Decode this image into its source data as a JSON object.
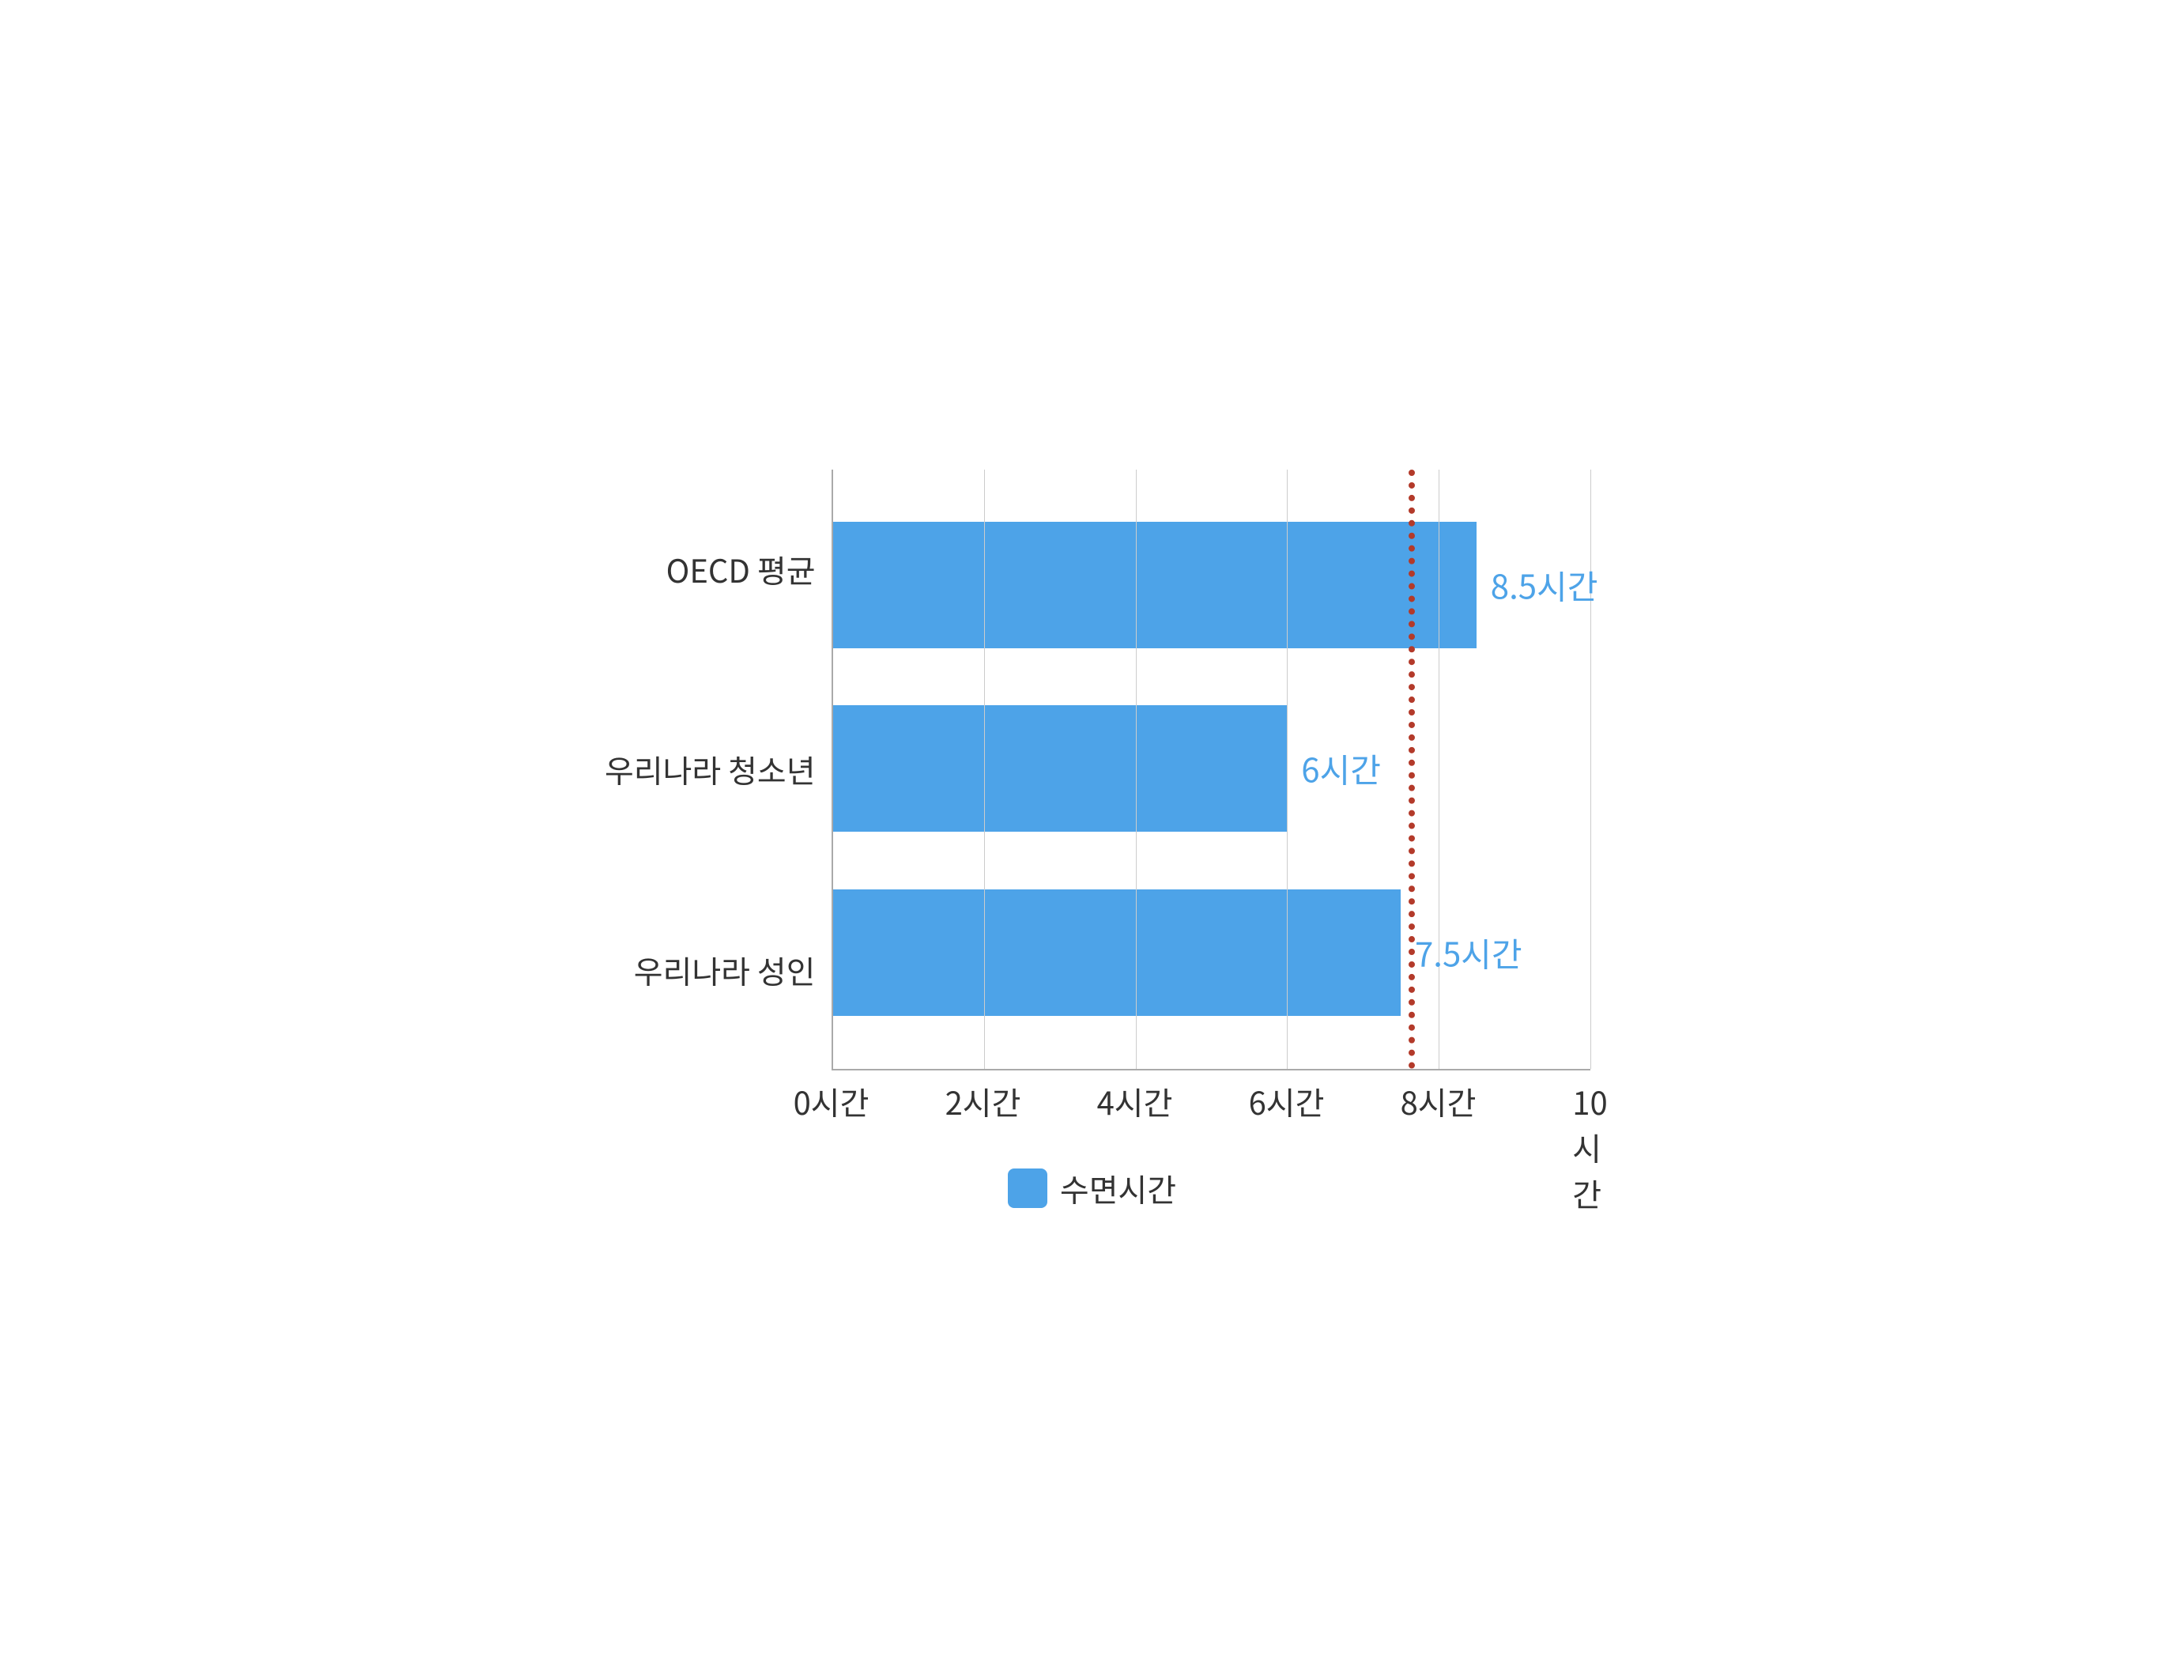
{
  "chart": {
    "type": "bar",
    "orientation": "horizontal",
    "background_color": "#ffffff",
    "axis_color": "#aaaaaa",
    "grid_color": "#cccccc",
    "label_color": "#333333",
    "label_fontsize": 40,
    "bar_color": "#4da3e8",
    "value_label_color": "#4da3e8",
    "value_label_fontsize": 42,
    "xlim": [
      0,
      10
    ],
    "xtick_step": 2,
    "xtick_suffix": "시간",
    "reference_line": {
      "value": 7.6,
      "color": "#b33a2a",
      "style": "dotted",
      "width": 8
    },
    "categories": [
      {
        "label": "OECD 평균",
        "value": 8.5,
        "display": "8.5시간"
      },
      {
        "label": "우리나라 청소년",
        "value": 6,
        "display": "6시간"
      },
      {
        "label": "우리나라 성인",
        "value": 7.5,
        "display": "7.5시간"
      }
    ],
    "x_ticks": [
      {
        "value": 0,
        "label": "0시간"
      },
      {
        "value": 2,
        "label": "2시간"
      },
      {
        "value": 4,
        "label": "4시간"
      },
      {
        "value": 6,
        "label": "6시간"
      },
      {
        "value": 8,
        "label": "8시간"
      },
      {
        "value": 10,
        "label": "10시간"
      }
    ],
    "legend": {
      "label": "수면시간",
      "color": "#4da3e8"
    }
  }
}
